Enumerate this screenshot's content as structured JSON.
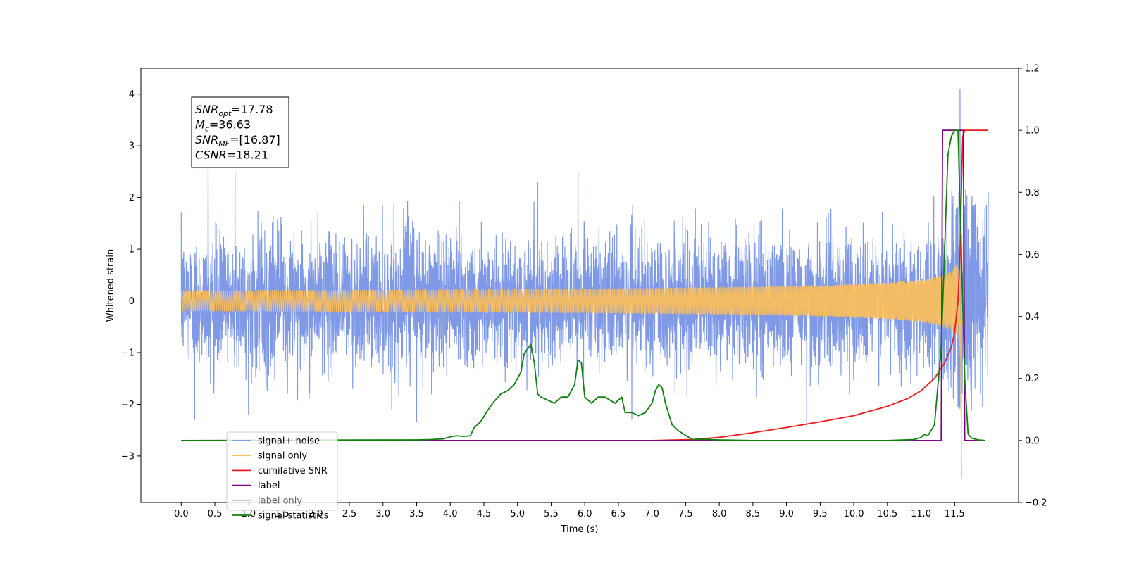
{
  "chart_data": {
    "type": "line",
    "xlabel": "Time (s)",
    "ylabel": "Whitened strain",
    "xlim": [
      -0.6,
      12.45
    ],
    "ylim_left": [
      -3.9,
      4.5
    ],
    "ylim_right": [
      -0.2,
      1.2
    ],
    "x_ticks": [
      0.0,
      0.5,
      1.0,
      1.5,
      2.0,
      2.5,
      3.0,
      3.5,
      4.0,
      4.5,
      5.0,
      5.5,
      6.0,
      6.5,
      7.0,
      7.5,
      8.0,
      8.5,
      9.0,
      9.5,
      10.0,
      10.5,
      11.0,
      11.5
    ],
    "x_tick_labels": [
      "0.0",
      "0.5",
      "1.0",
      "1.5",
      "2.0",
      "2.5",
      "3.0",
      "3.5",
      "4.0",
      "4.5",
      "5.0",
      "5.5",
      "6.0",
      "6.5",
      "7.0",
      "7.5",
      "8.0",
      "8.5",
      "9.0",
      "9.5",
      "10.0",
      "10.5",
      "11.0",
      "11.5"
    ],
    "y_left_ticks": [
      -3,
      -2,
      -1,
      0,
      1,
      2,
      3,
      4
    ],
    "y_left_tick_labels": [
      "−3",
      "−2",
      "−1",
      "0",
      "1",
      "2",
      "3",
      "4"
    ],
    "y_right_ticks": [
      -0.2,
      0.0,
      0.2,
      0.4,
      0.6,
      0.8,
      1.0,
      1.2
    ],
    "y_right_tick_labels": [
      "−0.2",
      "0.0",
      "0.2",
      "0.4",
      "0.6",
      "0.8",
      "1.0",
      "1.2"
    ],
    "grid": false,
    "legend_placement": "lower-left",
    "annotation": {
      "lines": [
        {
          "base": "SNR",
          "sub": "opt",
          "value": "=17.78"
        },
        {
          "base": "M",
          "sub": "c",
          "value": "=36.63"
        },
        {
          "base": "SNR",
          "sub": "MF",
          "value": "=[16.87]"
        },
        {
          "base": "CSNR",
          "sub": "",
          "value": "=18.21"
        }
      ]
    },
    "series": [
      {
        "name": "signal+ noise",
        "axis": "left",
        "color": "#7893e6",
        "style": "noise",
        "x_range": [
          0.0,
          12.0
        ],
        "amplitude_envelope": [
          [
            0.0,
            1.0
          ],
          [
            5.0,
            1.0
          ],
          [
            11.0,
            1.0
          ],
          [
            11.6,
            1.8
          ]
        ],
        "spikes": [
          {
            "x": 0.4,
            "y": 2.6
          },
          {
            "x": 0.8,
            "y": 2.5
          },
          {
            "x": 5.3,
            "y": 2.3
          },
          {
            "x": 5.9,
            "y": 2.5
          },
          {
            "x": 11.58,
            "y": 4.1
          },
          {
            "x": 11.6,
            "y": -3.45
          },
          {
            "x": 0.2,
            "y": -2.3
          },
          {
            "x": 3.5,
            "y": -2.35
          },
          {
            "x": 6.7,
            "y": -2.3
          },
          {
            "x": 9.3,
            "y": -2.45
          },
          {
            "x": 1.0,
            "y": -2.2
          }
        ]
      },
      {
        "name": "signal only",
        "axis": "left",
        "color": "#ffbf57",
        "style": "chirp",
        "x_range": [
          0.0,
          12.0
        ],
        "merger_time": 11.6,
        "peak_amplitude": 1.45,
        "min_value": -3.1
      },
      {
        "name": "cumilative SNR",
        "axis": "right",
        "color": "#e81c1c",
        "x": [
          0.0,
          5.0,
          7.0,
          7.6,
          8.0,
          8.5,
          9.0,
          9.5,
          10.0,
          10.5,
          10.8,
          11.0,
          11.2,
          11.35,
          11.45,
          11.5,
          11.55,
          11.58,
          11.6,
          11.62,
          11.65,
          12.0
        ],
        "y": [
          0.0,
          0.0,
          0.0,
          0.003,
          0.01,
          0.025,
          0.042,
          0.06,
          0.08,
          0.11,
          0.135,
          0.16,
          0.2,
          0.25,
          0.3,
          0.35,
          0.45,
          0.6,
          0.8,
          0.98,
          1.0,
          1.0
        ]
      },
      {
        "name": "label",
        "axis": "right",
        "color": "#800080",
        "x": [
          0.0,
          11.3,
          11.32,
          11.63,
          11.65,
          11.95
        ],
        "y": [
          0.0,
          0.0,
          1.0,
          1.0,
          0.0,
          0.0
        ]
      },
      {
        "name": "label only",
        "axis": "right",
        "color": "#800080",
        "hidden_in_plot": true,
        "x": [],
        "y": []
      },
      {
        "name": "signal statistics",
        "axis": "right",
        "color": "#118011",
        "x": [
          0.0,
          3.5,
          3.7,
          3.9,
          4.0,
          4.1,
          4.2,
          4.3,
          4.35,
          4.45,
          4.55,
          4.65,
          4.75,
          4.85,
          4.95,
          5.05,
          5.1,
          5.2,
          5.25,
          5.3,
          5.35,
          5.45,
          5.55,
          5.65,
          5.75,
          5.85,
          5.9,
          5.95,
          6.0,
          6.1,
          6.2,
          6.3,
          6.45,
          6.55,
          6.6,
          6.7,
          6.8,
          6.9,
          7.0,
          7.05,
          7.1,
          7.15,
          7.2,
          7.3,
          7.4,
          7.6,
          7.8,
          8.0,
          8.5,
          10.5,
          10.9,
          11.0,
          11.05,
          11.1,
          11.2,
          11.3,
          11.4,
          11.45,
          11.5,
          11.55,
          11.6,
          11.65,
          11.7,
          11.75,
          11.85,
          11.95
        ],
        "y": [
          0.0,
          0.002,
          0.003,
          0.005,
          0.012,
          0.015,
          0.013,
          0.015,
          0.04,
          0.06,
          0.095,
          0.125,
          0.15,
          0.16,
          0.18,
          0.22,
          0.28,
          0.31,
          0.25,
          0.15,
          0.14,
          0.13,
          0.12,
          0.14,
          0.14,
          0.18,
          0.26,
          0.25,
          0.14,
          0.12,
          0.14,
          0.14,
          0.12,
          0.14,
          0.09,
          0.09,
          0.08,
          0.09,
          0.12,
          0.16,
          0.18,
          0.17,
          0.12,
          0.05,
          0.03,
          0.003,
          0.004,
          0.002,
          0.0,
          0.0,
          0.003,
          0.01,
          0.02,
          0.015,
          0.05,
          0.3,
          0.92,
          0.98,
          1.0,
          1.0,
          0.6,
          0.2,
          0.02,
          0.008,
          0.002,
          0.0
        ]
      }
    ],
    "legend": [
      {
        "label": "signal+ noise",
        "color": "#7893e6"
      },
      {
        "label": "signal only",
        "color": "#ffbf57"
      },
      {
        "label": "cumilative SNR",
        "color": "#e81c1c"
      },
      {
        "label": "label",
        "color": "#800080"
      },
      {
        "label": "label only",
        "color": "#800080",
        "faded": true
      },
      {
        "label": "signal statistics",
        "color": "#118011"
      }
    ]
  }
}
